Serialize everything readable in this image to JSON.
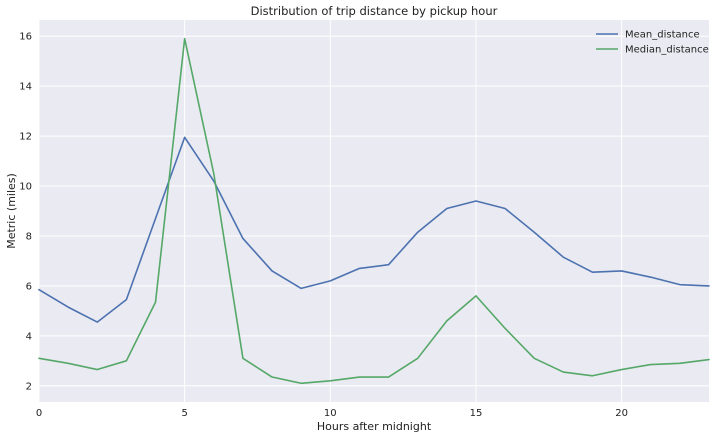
{
  "chart_data": {
    "type": "line",
    "title": "Distribution of trip distance by pickup hour",
    "xlabel": "Hours after midnight",
    "ylabel": "Metric (miles)",
    "x": [
      0,
      1,
      2,
      3,
      4,
      5,
      6,
      7,
      8,
      9,
      10,
      11,
      12,
      13,
      14,
      15,
      16,
      17,
      18,
      19,
      20,
      21,
      22,
      23
    ],
    "xlim": [
      0,
      23
    ],
    "ylim": [
      1.35,
      16.65
    ],
    "xticks": [
      0,
      5,
      10,
      15,
      20
    ],
    "yticks": [
      2,
      4,
      6,
      8,
      10,
      12,
      14,
      16
    ],
    "xtick_labels": [
      "0",
      "5",
      "10",
      "15",
      "20"
    ],
    "ytick_labels": [
      "2",
      "4",
      "6",
      "8",
      "10",
      "12",
      "14",
      "16"
    ],
    "grid": true,
    "legend_position": "top-right",
    "colors": {
      "plot_background": "#EAEAF2",
      "grid": "#FFFFFF",
      "text": "#222222"
    },
    "series": [
      {
        "name": "Mean_distance",
        "color": "#4C72B0",
        "values": [
          5.85,
          5.15,
          4.55,
          5.45,
          8.7,
          11.95,
          10.2,
          7.9,
          6.6,
          5.9,
          6.2,
          6.7,
          6.85,
          8.15,
          9.1,
          9.4,
          9.1,
          8.15,
          7.15,
          6.55,
          6.6,
          6.35,
          6.05,
          6.0
        ]
      },
      {
        "name": "Median_distance",
        "color": "#55A868",
        "values": [
          3.1,
          2.9,
          2.65,
          3.0,
          5.35,
          15.9,
          10.5,
          3.1,
          2.35,
          2.1,
          2.2,
          2.35,
          2.35,
          3.1,
          4.6,
          5.6,
          4.3,
          3.1,
          2.55,
          2.4,
          2.65,
          2.85,
          2.9,
          3.05
        ]
      }
    ]
  }
}
